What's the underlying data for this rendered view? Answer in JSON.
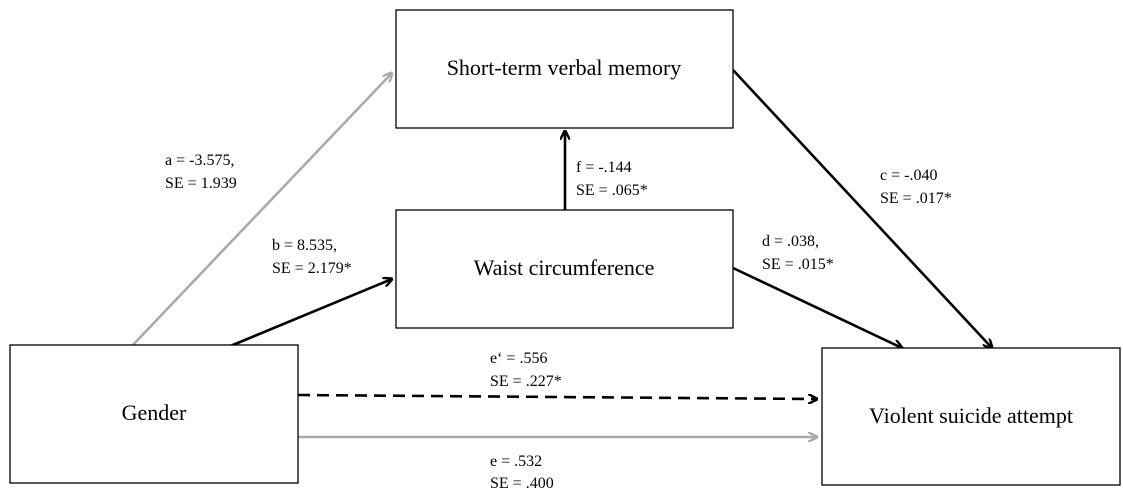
{
  "nodes": [
    {
      "label": "Short-term verbal memory"
    },
    {
      "label": "Waist circumference"
    },
    {
      "label": "Gender"
    },
    {
      "label": "Violent suicide attempt"
    }
  ],
  "edges": [
    {
      "coef": "a = -3.575,",
      "se": "SE = 1.939"
    },
    {
      "coef": "b = 8.535,",
      "se": "SE = 2.179*"
    },
    {
      "coef": "f = -.144",
      "se": "SE = .065*"
    },
    {
      "coef": "c = -.040",
      "se": "SE = .017*"
    },
    {
      "coef": "d = .038,",
      "se": "SE = .015*"
    },
    {
      "coef": "e‘ = .556",
      "se": "SE = .227*"
    },
    {
      "coef": "e = .532",
      "se": "SE = .400"
    }
  ]
}
